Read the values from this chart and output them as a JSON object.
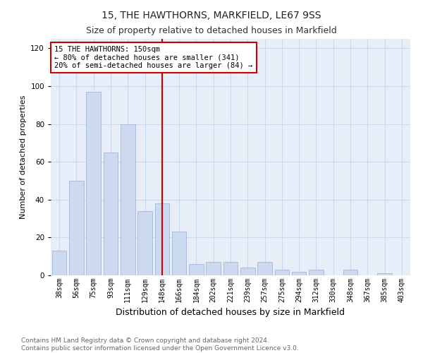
{
  "title": "15, THE HAWTHORNS, MARKFIELD, LE67 9SS",
  "subtitle": "Size of property relative to detached houses in Markfield",
  "xlabel": "Distribution of detached houses by size in Markfield",
  "ylabel": "Number of detached properties",
  "bar_labels": [
    "38sqm",
    "56sqm",
    "75sqm",
    "93sqm",
    "111sqm",
    "129sqm",
    "148sqm",
    "166sqm",
    "184sqm",
    "202sqm",
    "221sqm",
    "239sqm",
    "257sqm",
    "275sqm",
    "294sqm",
    "312sqm",
    "330sqm",
    "348sqm",
    "367sqm",
    "385sqm",
    "403sqm"
  ],
  "bar_values": [
    13,
    50,
    97,
    65,
    80,
    34,
    38,
    23,
    6,
    7,
    7,
    4,
    7,
    3,
    2,
    3,
    0,
    3,
    0,
    1,
    0
  ],
  "bar_color": "#ccd9ee",
  "bar_edge_color": "#a8bedc",
  "vline_x_idx": 6,
  "vline_color": "#cc0000",
  "annotation_text": "15 THE HAWTHORNS: 150sqm\n← 80% of detached houses are smaller (341)\n20% of semi-detached houses are larger (84) →",
  "annotation_box_facecolor": "#ffffff",
  "annotation_box_edgecolor": "#cc0000",
  "ylim": [
    0,
    125
  ],
  "yticks": [
    0,
    20,
    40,
    60,
    80,
    100,
    120
  ],
  "grid_color": "#cdd8ec",
  "bg_color": "#e8eef8",
  "footer_line1": "Contains HM Land Registry data © Crown copyright and database right 2024.",
  "footer_line2": "Contains public sector information licensed under the Open Government Licence v3.0.",
  "title_fontsize": 10,
  "subtitle_fontsize": 9,
  "ylabel_fontsize": 8,
  "xlabel_fontsize": 9,
  "tick_fontsize": 7,
  "annotation_fontsize": 7.5,
  "footer_fontsize": 6.5
}
